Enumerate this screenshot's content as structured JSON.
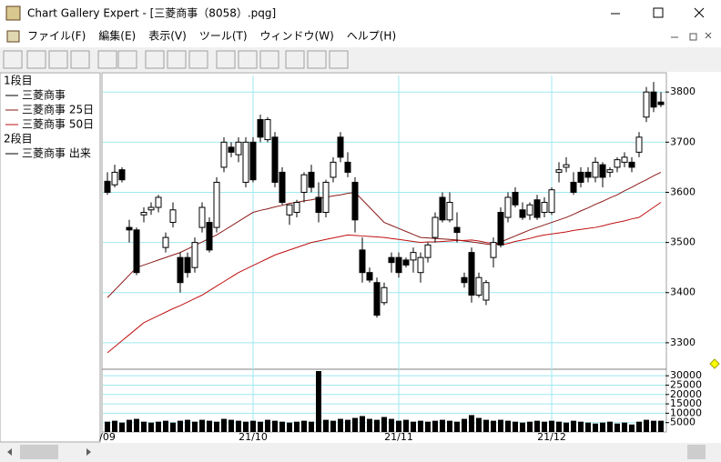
{
  "window": {
    "title": "Chart Gallery Expert - [三菱商事（8058）.pqg]",
    "menu": [
      "ファイル(F)",
      "編集(E)",
      "表示(V)",
      "ツール(T)",
      "ウィンドウ(W)",
      "ヘルプ(H)"
    ]
  },
  "legend_panel": {
    "pane1": "1段目",
    "pane2": "2段目"
  },
  "chart_data": {
    "type": "candlestick",
    "name": "三菱商事",
    "categories": [
      "/09",
      null,
      null,
      null,
      null,
      null,
      null,
      null,
      null,
      null,
      null,
      null,
      null,
      null,
      null,
      null,
      null,
      null,
      null,
      null,
      "21/10",
      null,
      null,
      null,
      null,
      null,
      null,
      null,
      null,
      null,
      null,
      null,
      null,
      null,
      null,
      null,
      null,
      null,
      null,
      null,
      "21/11",
      null,
      null,
      null,
      null,
      null,
      null,
      null,
      null,
      null,
      null,
      null,
      null,
      null,
      null,
      null,
      null,
      null,
      null,
      null,
      null,
      "21/12",
      null,
      null,
      null,
      null,
      null,
      null,
      null,
      null,
      null,
      null,
      null,
      null,
      null,
      null,
      null
    ],
    "open": [
      3622,
      3615,
      3645,
      3530,
      3525,
      3555,
      3565,
      3570,
      3490,
      3540,
      3470,
      3470,
      3450,
      3530,
      3540,
      3530,
      3650,
      3690,
      3675,
      3620,
      3700,
      3745,
      3705,
      3710,
      3640,
      3555,
      3560,
      3600,
      3640,
      3590,
      3560,
      3630,
      3710,
      3660,
      3620,
      3485,
      3440,
      3420,
      3380,
      3470,
      3470,
      3465,
      3465,
      3440,
      3470,
      3510,
      3590,
      3545,
      3530,
      3430,
      3480,
      3395,
      3385,
      3470,
      3560,
      3550,
      3600,
      3565,
      3555,
      3585,
      3560,
      3560,
      3640,
      3650,
      3620,
      3640,
      3640,
      3630,
      3655,
      3640,
      3650,
      3660,
      3660,
      3680,
      3750,
      3800,
      3780
    ],
    "high": [
      3640,
      3655,
      3650,
      3545,
      3530,
      3570,
      3580,
      3595,
      3520,
      3580,
      3480,
      3480,
      3510,
      3580,
      3550,
      3630,
      3710,
      3700,
      3710,
      3710,
      3710,
      3755,
      3750,
      3720,
      3650,
      3570,
      3585,
      3640,
      3655,
      3620,
      3625,
      3670,
      3720,
      3680,
      3630,
      3510,
      3450,
      3430,
      3420,
      3480,
      3480,
      3470,
      3490,
      3480,
      3500,
      3560,
      3600,
      3600,
      3560,
      3440,
      3490,
      3440,
      3425,
      3510,
      3570,
      3600,
      3610,
      3580,
      3580,
      3595,
      3590,
      3610,
      3660,
      3670,
      3640,
      3650,
      3650,
      3670,
      3660,
      3650,
      3670,
      3680,
      3670,
      3720,
      3810,
      3820,
      3800
    ],
    "low": [
      3595,
      3610,
      3620,
      3500,
      3435,
      3540,
      3555,
      3560,
      3480,
      3530,
      3400,
      3430,
      3440,
      3520,
      3480,
      3520,
      3640,
      3670,
      3660,
      3610,
      3620,
      3700,
      3700,
      3610,
      3575,
      3535,
      3550,
      3580,
      3600,
      3540,
      3550,
      3620,
      3660,
      3630,
      3520,
      3420,
      3420,
      3350,
      3375,
      3440,
      3430,
      3450,
      3440,
      3420,
      3460,
      3500,
      3540,
      3540,
      3500,
      3410,
      3380,
      3390,
      3375,
      3450,
      3490,
      3540,
      3570,
      3545,
      3545,
      3545,
      3550,
      3555,
      3620,
      3640,
      3595,
      3610,
      3620,
      3620,
      3610,
      3630,
      3640,
      3650,
      3640,
      3670,
      3740,
      3760,
      3770
    ],
    "close": [
      3600,
      3640,
      3625,
      3525,
      3440,
      3560,
      3570,
      3590,
      3510,
      3565,
      3420,
      3440,
      3500,
      3570,
      3485,
      3620,
      3700,
      3680,
      3700,
      3700,
      3625,
      3710,
      3745,
      3620,
      3580,
      3575,
      3580,
      3635,
      3610,
      3560,
      3620,
      3660,
      3670,
      3640,
      3545,
      3440,
      3425,
      3355,
      3410,
      3460,
      3440,
      3455,
      3480,
      3470,
      3495,
      3550,
      3545,
      3580,
      3520,
      3420,
      3395,
      3430,
      3420,
      3500,
      3495,
      3590,
      3575,
      3550,
      3575,
      3550,
      3580,
      3605,
      3645,
      3655,
      3600,
      3620,
      3630,
      3660,
      3630,
      3645,
      3665,
      3670,
      3650,
      3710,
      3800,
      3770,
      3775
    ],
    "series": [
      {
        "name": "三菱商事 25日",
        "color": "#8b1a1a",
        "values": [
          3390,
          3405,
          3420,
          3435,
          3450,
          3455,
          3460,
          3465,
          3470,
          3475,
          3480,
          3487,
          3494,
          3501,
          3508,
          3515,
          3524,
          3533,
          3542,
          3551,
          3560,
          3564,
          3567,
          3571,
          3574,
          3578,
          3580,
          3583,
          3585,
          3588,
          3590,
          3593,
          3595,
          3598,
          3600,
          3585,
          3570,
          3555,
          3540,
          3534,
          3528,
          3522,
          3516,
          3510,
          3509,
          3508,
          3507,
          3506,
          3505,
          3503,
          3501,
          3499,
          3497,
          3495,
          3501,
          3507,
          3513,
          3519,
          3525,
          3530,
          3535,
          3540,
          3545,
          3550,
          3556,
          3563,
          3569,
          3576,
          3582,
          3589,
          3595,
          3603,
          3610,
          3618,
          3625,
          3633,
          3640
        ]
      },
      {
        "name": "三菱商事 50日",
        "color": "#c01010",
        "values": [
          3280,
          3292,
          3304,
          3316,
          3328,
          3340,
          3347,
          3354,
          3361,
          3368,
          3374,
          3381,
          3388,
          3395,
          3404,
          3413,
          3422,
          3431,
          3440,
          3447,
          3454,
          3461,
          3468,
          3475,
          3480,
          3485,
          3490,
          3495,
          3500,
          3503,
          3506,
          3509,
          3512,
          3515,
          3514,
          3513,
          3512,
          3511,
          3510,
          3508,
          3506,
          3504,
          3502,
          3500,
          3501,
          3501,
          3502,
          3503,
          3504,
          3504,
          3505,
          3503,
          3500,
          3498,
          3495,
          3498,
          3502,
          3505,
          3508,
          3512,
          3515,
          3517,
          3519,
          3521,
          3524,
          3526,
          3528,
          3530,
          3533,
          3537,
          3540,
          3543,
          3547,
          3550,
          3560,
          3570,
          3580
        ]
      }
    ],
    "ylim": [
      3249,
      3833
    ],
    "yticks": [
      3300,
      3400,
      3500,
      3600,
      3700,
      3800
    ],
    "grid": true,
    "volume": {
      "name": "三菱商事 出来",
      "values": [
        5500,
        6000,
        5000,
        6500,
        7000,
        5500,
        5000,
        5500,
        6000,
        5000,
        6000,
        6500,
        5500,
        6500,
        6000,
        5500,
        7000,
        6500,
        6000,
        5500,
        6000,
        5500,
        6500,
        6000,
        5500,
        5000,
        5500,
        6000,
        5500,
        32500,
        6500,
        6000,
        7000,
        6500,
        7500,
        8500,
        7000,
        6500,
        8000,
        7000,
        6000,
        6500,
        5500,
        6000,
        5500,
        6000,
        6500,
        6000,
        5500,
        7000,
        9000,
        7500,
        6500,
        6000,
        6500,
        6000,
        5500,
        5000,
        5500,
        6000,
        5500,
        6000,
        5500,
        5000,
        6000,
        5500,
        5000,
        4500,
        5000,
        5500,
        4500,
        5000,
        4000,
        5500,
        6500,
        6000,
        6000
      ],
      "ylim": [
        0,
        33000
      ],
      "yticks": [
        5000,
        10000,
        15000,
        20000,
        25000,
        30000
      ]
    }
  }
}
